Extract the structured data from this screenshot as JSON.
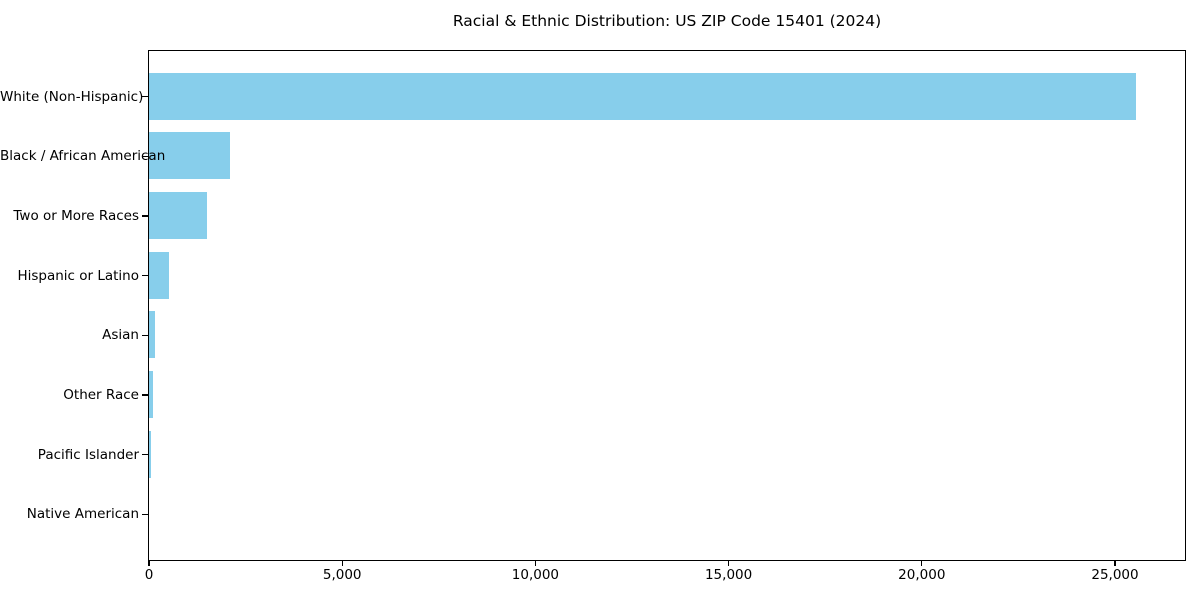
{
  "colors": {
    "bar": "#87CEEB",
    "axis": "#000000",
    "text": "#000000",
    "background": "#FFFFFF"
  },
  "chart_data": {
    "type": "bar",
    "orientation": "horizontal",
    "title": "Racial & Ethnic Distribution: US ZIP Code 15401 (2024)",
    "categories": [
      "White (Non-Hispanic)",
      "Black / African American",
      "Two or More Races",
      "Hispanic or Latino",
      "Asian",
      "Other Race",
      "Pacific Islander",
      "Native American"
    ],
    "values": [
      25540,
      2100,
      1500,
      520,
      150,
      95,
      50,
      0
    ],
    "xlabel": "",
    "ylabel": "",
    "xlim": [
      0,
      26800
    ],
    "x_ticks": [
      0,
      5000,
      10000,
      15000,
      20000,
      25000
    ],
    "x_tick_labels": [
      "0",
      "5,000",
      "10,000",
      "15,000",
      "20,000",
      "25,000"
    ],
    "grid": false,
    "legend": null,
    "bar_color": "#87CEEB"
  }
}
